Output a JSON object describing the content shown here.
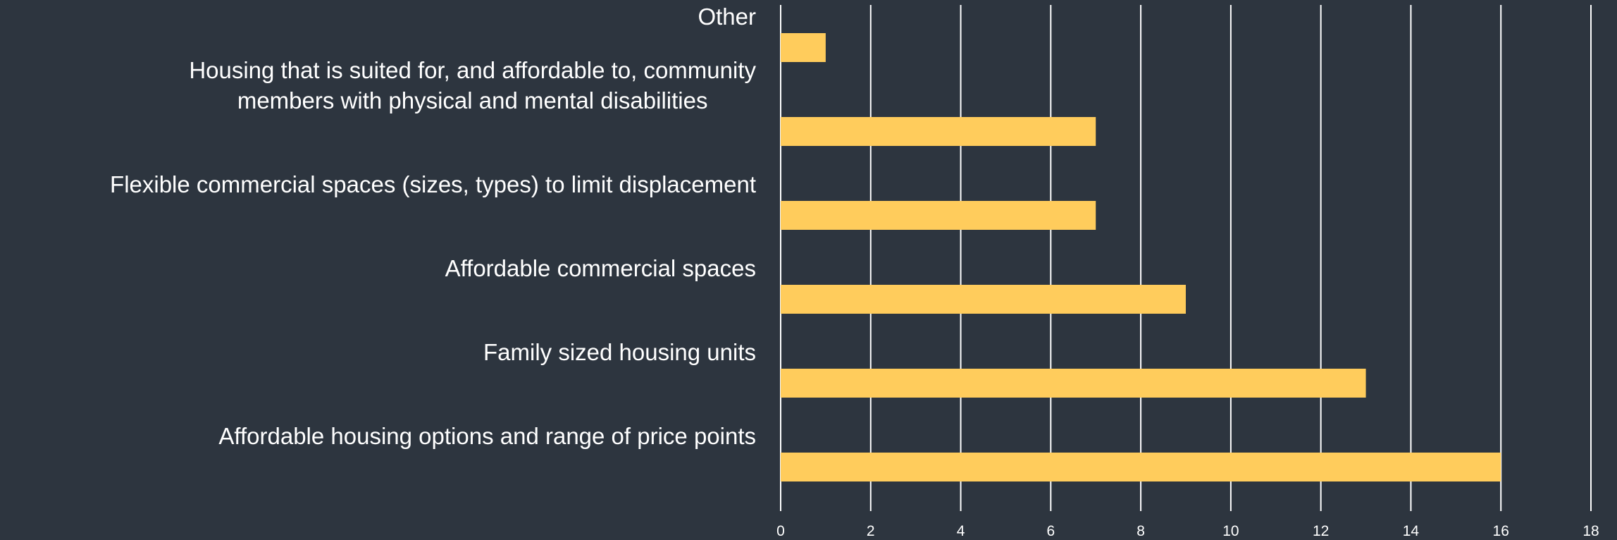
{
  "chart_data": {
    "type": "hbar",
    "categories": [
      "Other",
      "Housing that is suited for, and affordable to, community\nmembers with physical and mental disabilities",
      "Flexible commercial spaces (sizes, types) to limit displacement",
      "Affordable commercial spaces",
      "Family sized housing units",
      "Affordable housing options and range of price points"
    ],
    "values": [
      1,
      7,
      7,
      9,
      13,
      16
    ],
    "color": "#ffcc5c",
    "xlim": [
      0,
      18
    ],
    "xticks": [
      0,
      2,
      4,
      6,
      8,
      10,
      12,
      14,
      16,
      18
    ],
    "grid": true
  }
}
